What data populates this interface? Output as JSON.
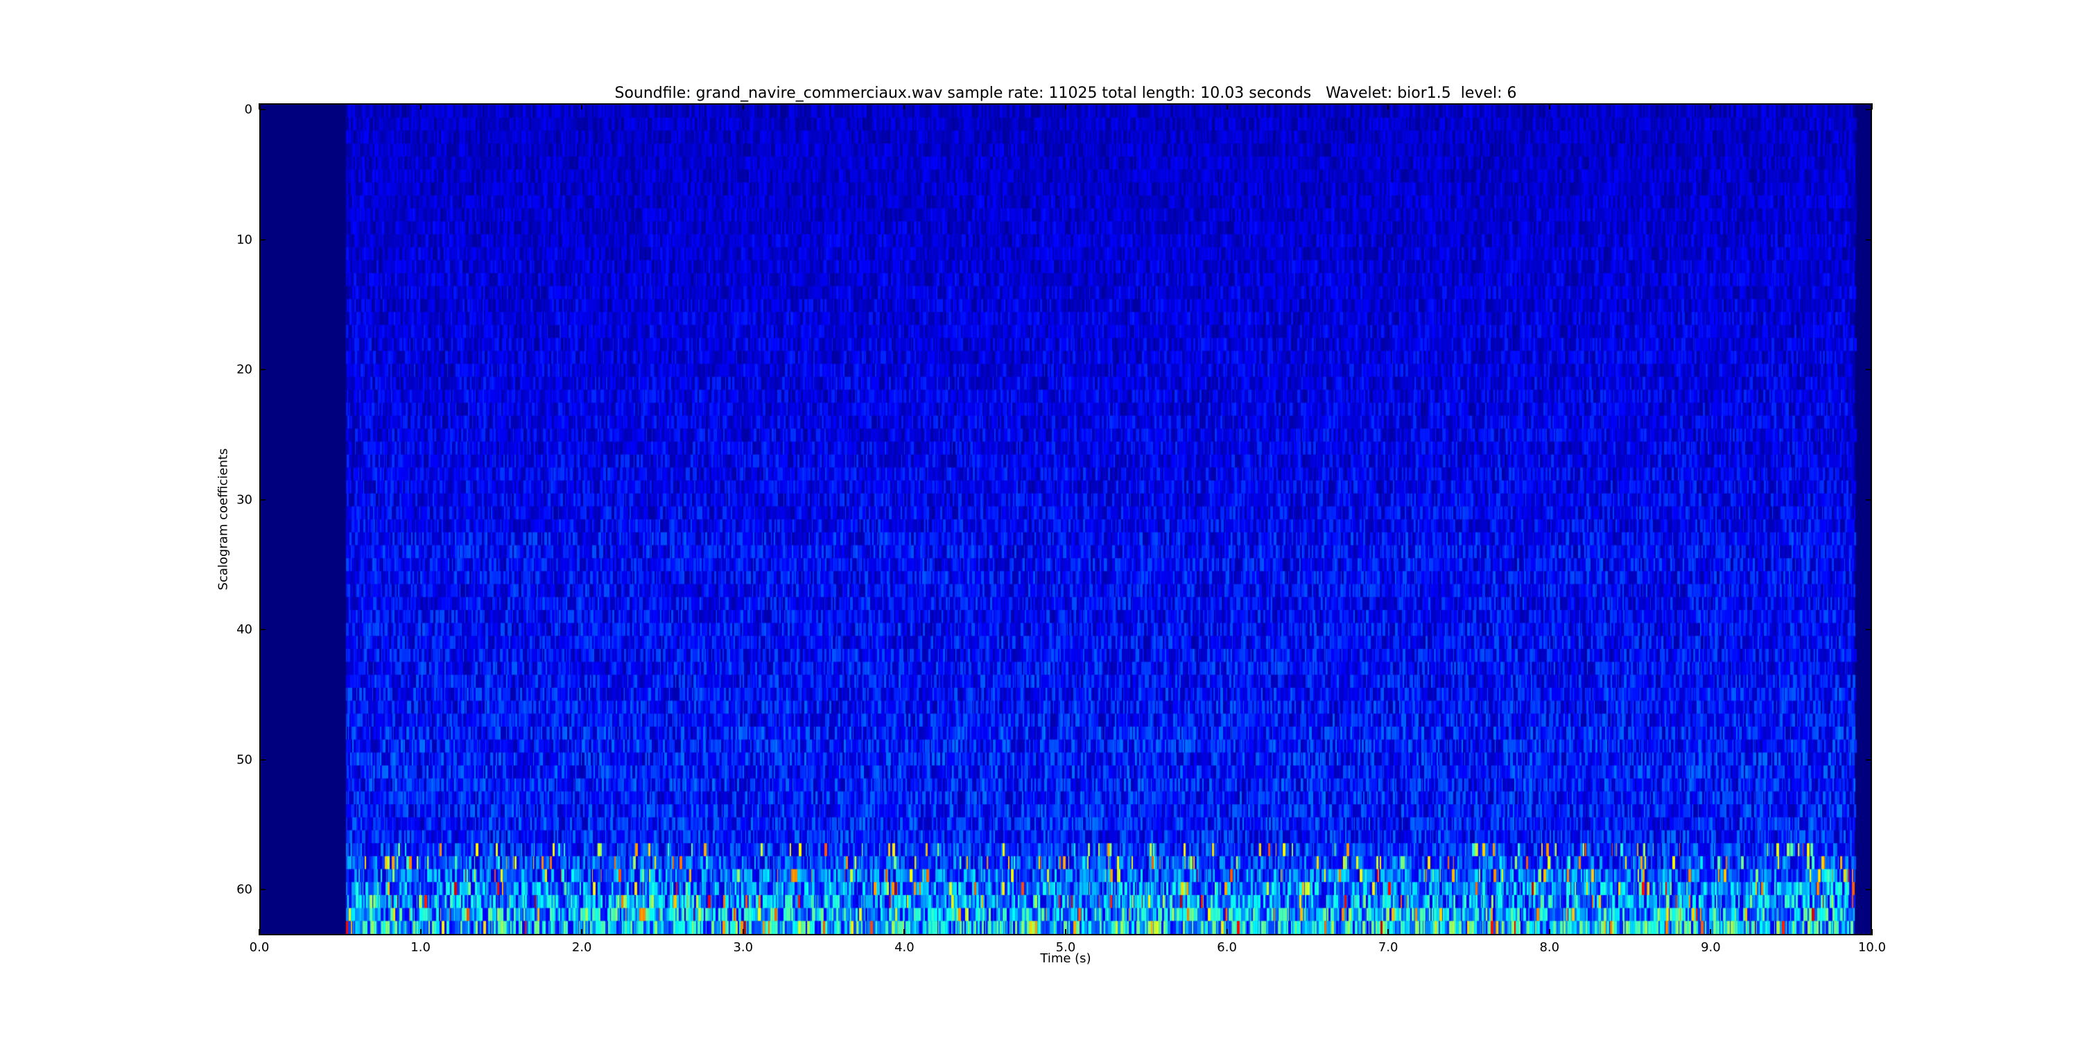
{
  "chart_data": {
    "type": "heatmap",
    "title": "Soundfile: grand_navire_commerciaux.wav sample rate: 11025 total length: 10.03 seconds   Wavelet: bior1.5  level: 6",
    "xlabel": "Time (s)",
    "ylabel": "Scalogram coefficients",
    "xlim": [
      0.0,
      10.0
    ],
    "ylim": [
      63.5,
      -0.5
    ],
    "xticks": [
      "0.0",
      "1.0",
      "2.0",
      "3.0",
      "4.0",
      "5.0",
      "6.0",
      "7.0",
      "8.0",
      "9.0",
      "10.0"
    ],
    "yticks": [
      "0",
      "10",
      "20",
      "30",
      "40",
      "50",
      "60"
    ],
    "rows": 64,
    "signal_start_s": 0.53,
    "signal_end_s": 9.9,
    "colormap": "jet",
    "background_color": "#00007f",
    "grid": false,
    "legend": "none"
  }
}
